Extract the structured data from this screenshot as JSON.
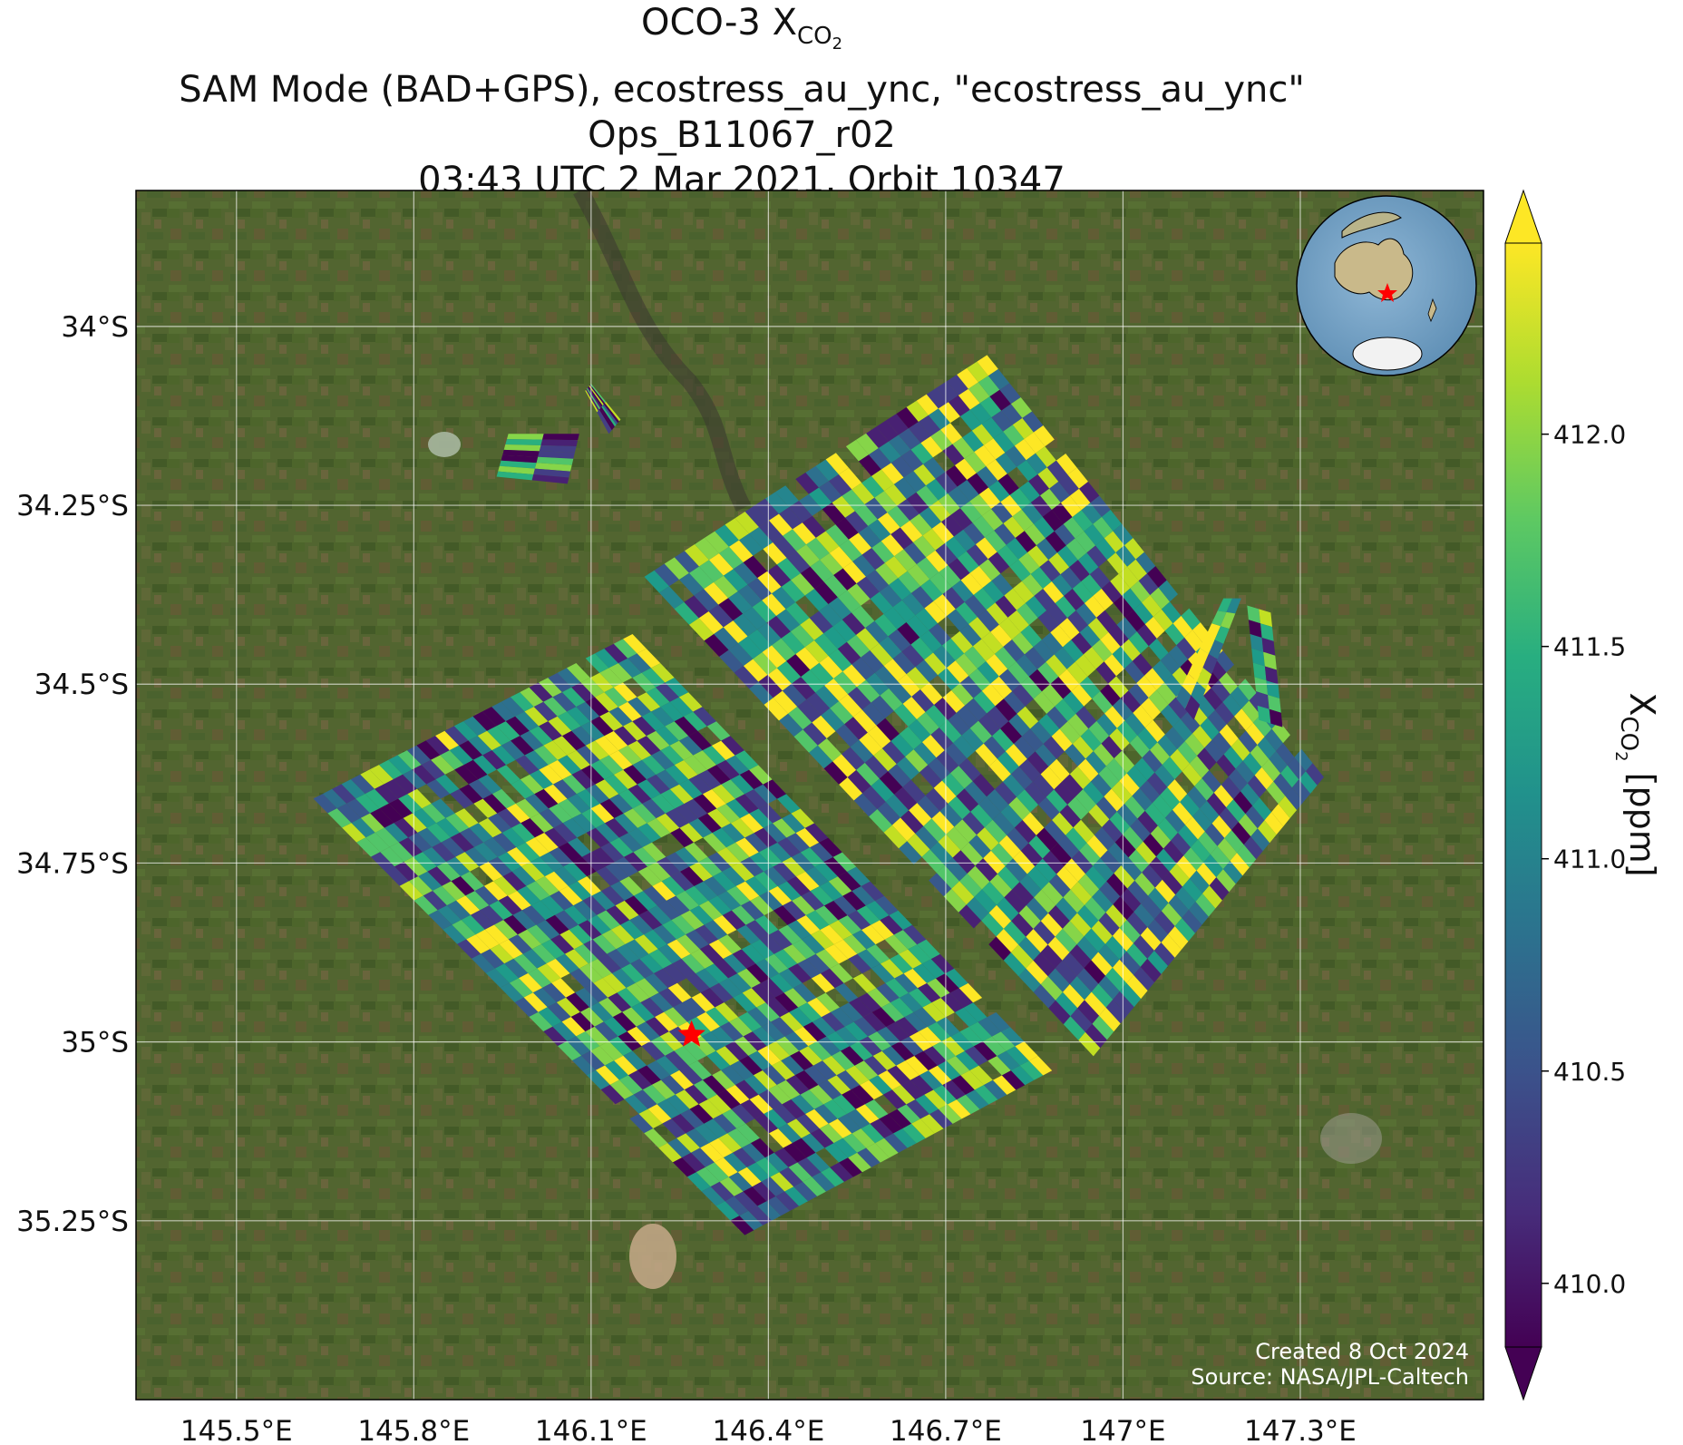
{
  "title": {
    "line1_prefix": "OCO-3 X",
    "line1_sub": "CO",
    "line1_subsub": "2",
    "line2": "SAM Mode (BAD+GPS), ecostress_au_ync, \"ecostress_au_ync\"",
    "line3": "Ops_B11067_r02",
    "line4": "03:43 UTC 2 Mar 2021, Orbit 10347"
  },
  "credits": {
    "created": "Created 8 Oct 2024",
    "source": "Source: NASA/JPL-Caltech"
  },
  "colorbar": {
    "label_prefix": "X",
    "label_sub": "CO",
    "label_subsub": "2",
    "label_suffix": " [ppm]",
    "ticks": [
      "410.0",
      "410.5",
      "411.0",
      "411.5",
      "412.0"
    ],
    "tick_values": [
      410.0,
      410.5,
      411.0,
      411.5,
      412.0
    ],
    "vmin": 409.85,
    "vmax": 412.45,
    "colormap": "viridis",
    "extend": "both"
  },
  "chart_data": {
    "type": "heatmap",
    "description_of_axes": "longitude / latitude map",
    "lon_ticks": [
      "145.5°E",
      "145.8°E",
      "146.1°E",
      "146.4°E",
      "146.7°E",
      "147°E",
      "147.3°E"
    ],
    "lon_tick_values": [
      145.5,
      145.8,
      146.1,
      146.4,
      146.7,
      147.0,
      147.3
    ],
    "lat_ticks": [
      "34°S",
      "34.25°S",
      "34.5°S",
      "34.75°S",
      "35°S",
      "35.25°S"
    ],
    "lat_tick_values": [
      -34.0,
      -34.25,
      -34.5,
      -34.75,
      -35.0,
      -35.25
    ],
    "lon_range": [
      145.33,
      147.61
    ],
    "lat_range": [
      -35.5,
      -33.81
    ],
    "grid": true,
    "target": {
      "marker": "star",
      "color": "#ff0000",
      "lon": 146.27,
      "lat": -34.99
    },
    "swaths": [
      {
        "name": "swath-sw",
        "corners": [
          [
            145.63,
            -34.66
          ],
          [
            146.17,
            -34.43
          ],
          [
            146.88,
            -35.04
          ],
          [
            146.36,
            -35.27
          ]
        ]
      },
      {
        "name": "swath-ne",
        "corners": [
          [
            146.19,
            -34.35
          ],
          [
            146.77,
            -34.04
          ],
          [
            147.34,
            -34.63
          ],
          [
            146.95,
            -35.02
          ]
        ]
      },
      {
        "name": "strip-1",
        "corners": [
          [
            145.96,
            -34.15
          ],
          [
            146.08,
            -34.15
          ],
          [
            146.06,
            -34.22
          ],
          [
            145.94,
            -34.21
          ]
        ]
      },
      {
        "name": "strip-2",
        "corners": [
          [
            146.1,
            -34.08
          ],
          [
            146.15,
            -34.13
          ],
          [
            146.13,
            -34.15
          ],
          [
            146.09,
            -34.09
          ]
        ]
      },
      {
        "name": "strip-3",
        "corners": [
          [
            147.17,
            -34.38
          ],
          [
            147.2,
            -34.38
          ],
          [
            147.12,
            -34.55
          ],
          [
            147.09,
            -34.52
          ]
        ]
      },
      {
        "name": "strip-4",
        "corners": [
          [
            147.21,
            -34.39
          ],
          [
            147.25,
            -34.4
          ],
          [
            147.27,
            -34.56
          ],
          [
            147.23,
            -34.55
          ]
        ]
      }
    ]
  },
  "inset_globe": {
    "description_icon": "globe-inset-icon",
    "marker_color": "#ff0000"
  }
}
